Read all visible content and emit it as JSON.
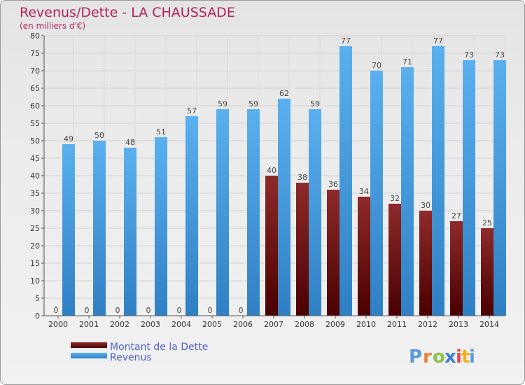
{
  "chart_data": {
    "type": "bar",
    "title": "Revenus/Dette - LA CHAUSSADE",
    "subtitle": "(en milliers d'€)",
    "categories": [
      "2000",
      "2001",
      "2002",
      "2003",
      "2004",
      "2005",
      "2006",
      "2007",
      "2008",
      "2009",
      "2010",
      "2011",
      "2012",
      "2013",
      "2014"
    ],
    "series": [
      {
        "name": "Montant de la Dette",
        "color": "#7a1010",
        "values": [
          0,
          0,
          0,
          0,
          0,
          0,
          0,
          40,
          38,
          36,
          34,
          32,
          30,
          27,
          25
        ]
      },
      {
        "name": "Revenus",
        "color": "#4a9fe3",
        "values": [
          49,
          50,
          48,
          51,
          57,
          59,
          59,
          62,
          59,
          77,
          70,
          71,
          77,
          73,
          73
        ]
      }
    ],
    "ylim": [
      0,
      80
    ],
    "ytick_step": 5,
    "grid": true,
    "legend": "bottom-left"
  },
  "branding": {
    "logo_text": "Proxiti",
    "logo_colors": [
      "#5a9ad9",
      "#e6833a",
      "#8bc34a",
      "#3a7fd0",
      "#e34a4a",
      "#f2b01e",
      "#5a9ad9"
    ]
  }
}
